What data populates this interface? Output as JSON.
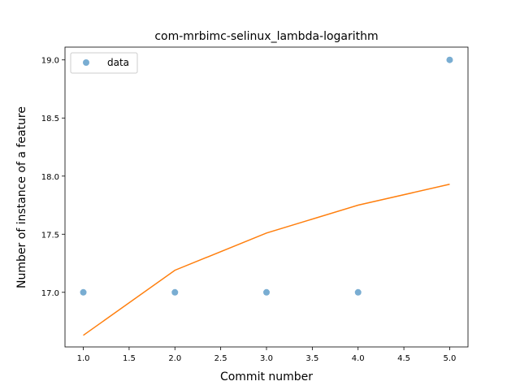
{
  "chart_data": {
    "type": "scatter",
    "title": "com-mrbimc-selinux_lambda-logarithm",
    "xlabel": "Commit number",
    "ylabel": "Number of instance of a feature",
    "xlim": [
      0.8,
      5.2
    ],
    "ylim": [
      16.53,
      19.11
    ],
    "x_ticks": [
      1.0,
      1.5,
      2.0,
      2.5,
      3.0,
      3.5,
      4.0,
      4.5,
      5.0
    ],
    "y_ticks": [
      17.0,
      17.5,
      18.0,
      18.5,
      19.0
    ],
    "x_tick_labels": [
      "1.0",
      "1.5",
      "2.0",
      "2.5",
      "3.0",
      "3.5",
      "4.0",
      "4.5",
      "5.0"
    ],
    "y_tick_labels": [
      "17.0",
      "17.5",
      "18.0",
      "18.5",
      "19.0"
    ],
    "legend_position": "top-left",
    "grid": false,
    "series": [
      {
        "name": "data",
        "kind": "scatter",
        "color": "#1f77b4",
        "x": [
          1,
          2,
          3,
          4,
          5
        ],
        "y": [
          17,
          17,
          17,
          17,
          19
        ]
      },
      {
        "kind": "line",
        "color": "#ff7f0e",
        "x": [
          1,
          2,
          3,
          4,
          5
        ],
        "y": [
          16.63,
          17.19,
          17.51,
          17.75,
          17.93
        ]
      }
    ]
  }
}
